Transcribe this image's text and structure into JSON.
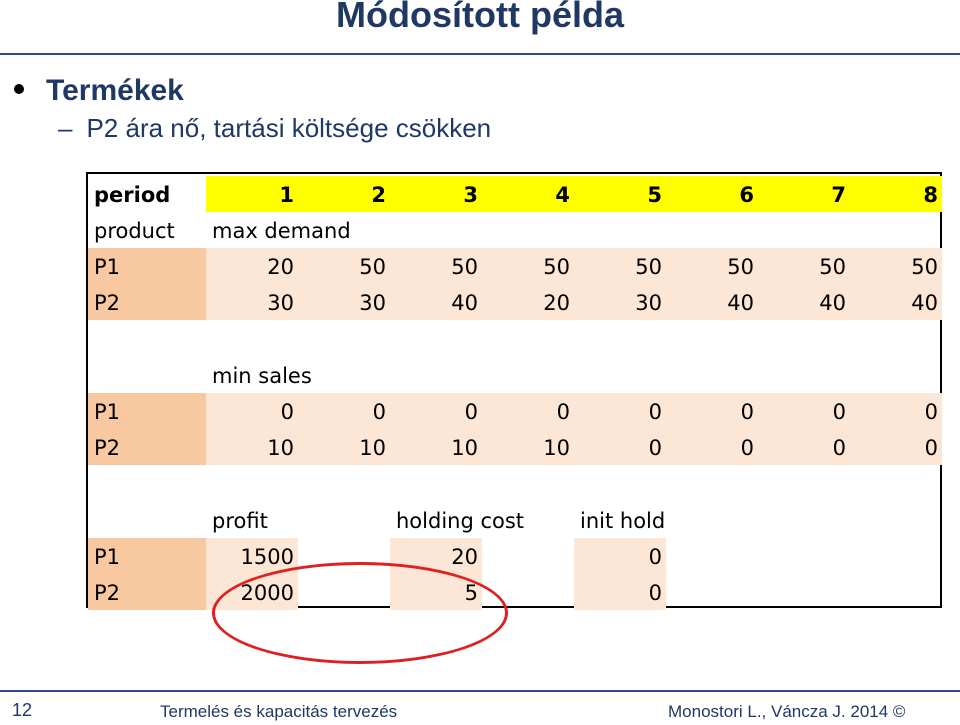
{
  "slide": {
    "title": "Módosított példa",
    "bullet": "Termékek",
    "subbullet": "P2 ára nő, tartási költsége csökken",
    "dash": "–"
  },
  "table": {
    "period_label": "period",
    "periods": [
      "1",
      "2",
      "3",
      "4",
      "5",
      "6",
      "7",
      "8"
    ],
    "product_label": "product",
    "max_demand_label": "max demand",
    "max_demand": {
      "P1": [
        "20",
        "50",
        "50",
        "50",
        "50",
        "50",
        "50",
        "50"
      ],
      "P2": [
        "30",
        "30",
        "40",
        "20",
        "30",
        "40",
        "40",
        "40"
      ]
    },
    "min_sales_label": "min sales",
    "min_sales": {
      "P1": [
        "0",
        "0",
        "0",
        "0",
        "0",
        "0",
        "0",
        "0"
      ],
      "P2": [
        "10",
        "10",
        "10",
        "10",
        "0",
        "0",
        "0",
        "0"
      ]
    },
    "profit_label": "profit",
    "holding_cost_label": "holding cost",
    "init_hold_label": "init hold",
    "rows": [
      "P1",
      "P2"
    ],
    "profit": [
      "1500",
      "2000"
    ],
    "holding_cost": [
      "20",
      "5"
    ],
    "init_hold": [
      "0",
      "0"
    ]
  },
  "footer": {
    "page": "12",
    "course": "Termelés és kapacitás tervezés",
    "authors": "Monostori L., Váncza J. 2014 ©"
  }
}
